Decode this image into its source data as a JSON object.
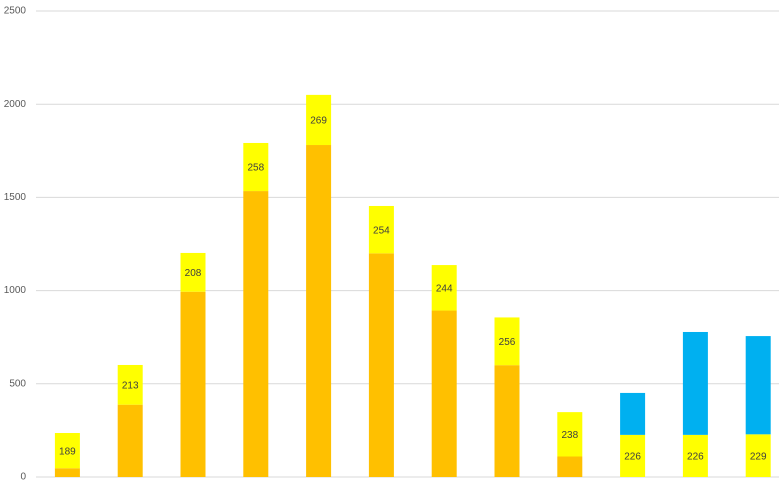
{
  "chart_data": {
    "type": "stacked_bar",
    "categories": [
      null,
      null,
      null,
      null,
      null,
      null,
      null,
      null,
      null,
      null,
      null,
      null
    ],
    "series": [
      {
        "color": "#FFC000",
        "values": [
          47,
          388,
          994,
          1534,
          1781,
          1200,
          893,
          600,
          110,
          null,
          null,
          null
        ]
      },
      {
        "color": "#FFFF00",
        "values": [
          189,
          213,
          208,
          258,
          269,
          254,
          244,
          256,
          238,
          226,
          226,
          229
        ],
        "data_labels": true
      },
      {
        "color": "#00B0F0",
        "values": [
          null,
          null,
          null,
          null,
          null,
          null,
          null,
          null,
          null,
          225,
          552,
          527
        ]
      }
    ],
    "ylim": [
      0,
      2500
    ],
    "yticks": [
      0,
      500,
      1000,
      1500,
      2000,
      2500
    ],
    "grid": true
  }
}
